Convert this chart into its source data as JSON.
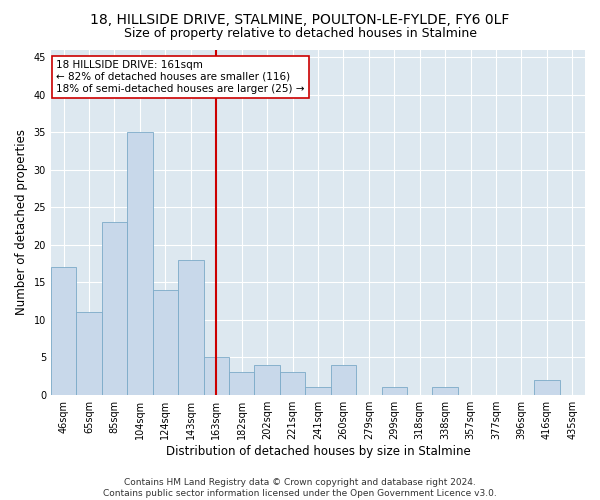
{
  "title_line1": "18, HILLSIDE DRIVE, STALMINE, POULTON-LE-FYLDE, FY6 0LF",
  "title_line2": "Size of property relative to detached houses in Stalmine",
  "xlabel": "Distribution of detached houses by size in Stalmine",
  "ylabel": "Number of detached properties",
  "categories": [
    "46sqm",
    "65sqm",
    "85sqm",
    "104sqm",
    "124sqm",
    "143sqm",
    "163sqm",
    "182sqm",
    "202sqm",
    "221sqm",
    "241sqm",
    "260sqm",
    "279sqm",
    "299sqm",
    "318sqm",
    "338sqm",
    "357sqm",
    "377sqm",
    "396sqm",
    "416sqm",
    "435sqm"
  ],
  "values": [
    17,
    11,
    23,
    35,
    14,
    18,
    5,
    3,
    4,
    3,
    1,
    4,
    0,
    1,
    0,
    1,
    0,
    0,
    0,
    2,
    0
  ],
  "bar_color": "#c8d8ea",
  "bar_edge_color": "#7baac8",
  "vline_x_index": 6,
  "vline_color": "#cc0000",
  "annotation_text": "18 HILLSIDE DRIVE: 161sqm\n← 82% of detached houses are smaller (116)\n18% of semi-detached houses are larger (25) →",
  "annotation_box_facecolor": "#ffffff",
  "annotation_box_edgecolor": "#cc0000",
  "ylim": [
    0,
    46
  ],
  "yticks": [
    0,
    5,
    10,
    15,
    20,
    25,
    30,
    35,
    40,
    45
  ],
  "footer": "Contains HM Land Registry data © Crown copyright and database right 2024.\nContains public sector information licensed under the Open Government Licence v3.0.",
  "fig_facecolor": "#ffffff",
  "ax_facecolor": "#dde8f0",
  "grid_color": "#ffffff",
  "title_fontsize": 10,
  "subtitle_fontsize": 9,
  "axis_label_fontsize": 8.5,
  "tick_fontsize": 7,
  "footer_fontsize": 6.5,
  "annotation_fontsize": 7.5
}
